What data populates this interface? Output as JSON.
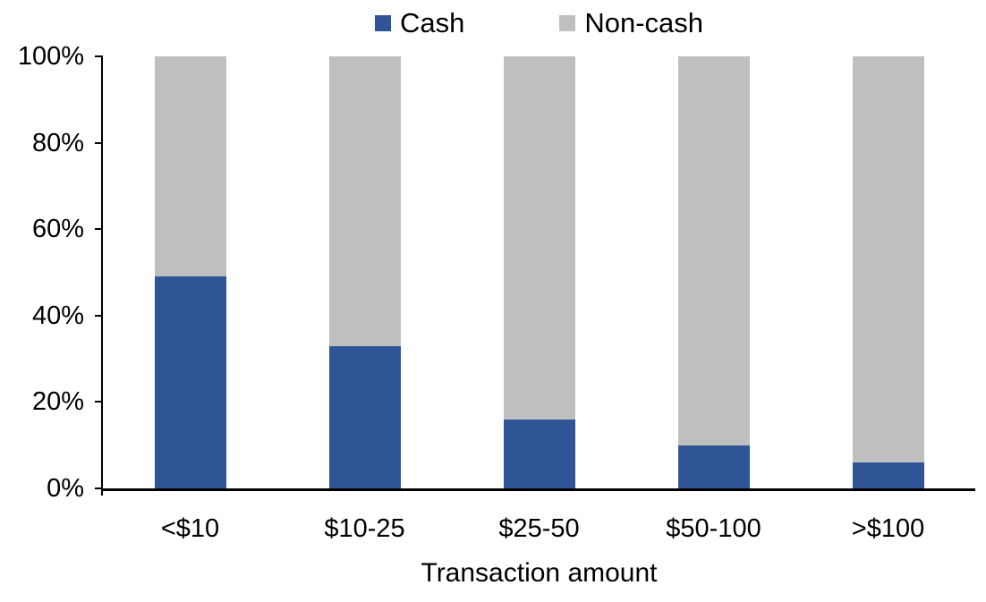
{
  "chart_data": {
    "type": "bar",
    "stacked": true,
    "categories": [
      "<$10",
      "$10-25",
      "$25-50",
      "$50-100",
      ">$100"
    ],
    "series": [
      {
        "name": "Cash",
        "color": "#2F5596",
        "values": [
          49,
          33,
          16,
          10,
          6
        ]
      },
      {
        "name": "Non-cash",
        "color": "#BFBFBF",
        "values": [
          51,
          67,
          84,
          90,
          94
        ]
      }
    ],
    "xlabel": "Transaction amount",
    "ylim": [
      0,
      100
    ],
    "yticks": [
      "0%",
      "20%",
      "40%",
      "60%",
      "80%",
      "100%"
    ],
    "legend_position": "top",
    "grid": false,
    "axis_color": "#000000"
  }
}
